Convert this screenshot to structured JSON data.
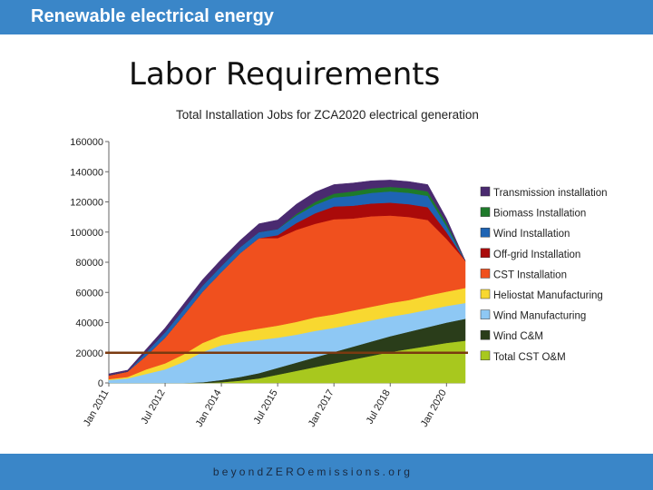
{
  "header": {
    "title": "Renewable electrical energy"
  },
  "slide": {
    "title": "Labor Requirements"
  },
  "footer": {
    "url": "beyondZEROemissions.org"
  },
  "chart_data": {
    "type": "area",
    "stacked": true,
    "title": "Total Installation Jobs for ZCA2020 electrical generation",
    "xlabel": "",
    "ylabel": "",
    "ylim": [
      0,
      160000
    ],
    "yticks": [
      0,
      20000,
      40000,
      60000,
      80000,
      100000,
      120000,
      140000,
      160000
    ],
    "x": [
      "Jan 2011",
      "Jul 2011",
      "Jan 2012",
      "Jul 2012",
      "Jan 2013",
      "Jul 2013",
      "Jan 2014",
      "Jul 2014",
      "Jan 2015",
      "Jul 2015",
      "Jan 2016",
      "Jul 2016",
      "Jan 2017",
      "Jul 2017",
      "Jan 2018",
      "Jul 2018",
      "Jan 2019",
      "Jul 2019",
      "Jan 2020",
      "Jul 2020"
    ],
    "xtick_labels": [
      "Jan 2011",
      "Jul 2012",
      "Jan 2014",
      "Jul 2015",
      "Jan 2017",
      "Jul 2018",
      "Jan 2020"
    ],
    "xtick_indices": [
      0,
      3,
      6,
      9,
      12,
      15,
      18
    ],
    "grid": false,
    "legend": "right",
    "reference_line": {
      "y": 20000,
      "color": "#7a3a10"
    },
    "series": [
      {
        "name": "Total CST O&M",
        "color": "#a8c81e",
        "values": [
          0,
          0,
          0,
          0,
          0,
          0,
          500,
          1500,
          3000,
          5500,
          8000,
          10500,
          13000,
          15500,
          18000,
          20500,
          22500,
          24500,
          26500,
          28000
        ]
      },
      {
        "name": "Wind C&M",
        "color": "#2a3d1a",
        "values": [
          0,
          0,
          0,
          0,
          0,
          500,
          1500,
          2500,
          3500,
          4500,
          5500,
          6500,
          7500,
          8500,
          9500,
          10500,
          11500,
          12500,
          13500,
          14500
        ]
      },
      {
        "name": "Wind Manufacturing",
        "color": "#8ec8f4",
        "values": [
          2000,
          3000,
          6000,
          9000,
          14000,
          20000,
          23000,
          23000,
          22000,
          20000,
          18500,
          17500,
          16000,
          15000,
          14000,
          13000,
          12000,
          11500,
          11000,
          10500
        ]
      },
      {
        "name": "Heliostat Manufacturing",
        "color": "#f8d830",
        "values": [
          500,
          1000,
          3000,
          4000,
          5000,
          6000,
          6500,
          7000,
          7500,
          8000,
          8500,
          9000,
          9000,
          9000,
          9000,
          9000,
          9000,
          9500,
          9500,
          10000
        ]
      },
      {
        "name": "CST Installation",
        "color": "#f0501e",
        "values": [
          2500,
          3500,
          9000,
          17000,
          26000,
          34000,
          42000,
          52000,
          60000,
          58000,
          61000,
          62000,
          63000,
          61000,
          60000,
          58000,
          55000,
          50000,
          35000,
          18000
        ]
      },
      {
        "name": "Off-grid Installation",
        "color": "#aa0a0a",
        "values": [
          0,
          0,
          0,
          0,
          0,
          0,
          0,
          0,
          0,
          2000,
          4500,
          7000,
          8500,
          8500,
          8500,
          8500,
          8500,
          8500,
          4500,
          0
        ]
      },
      {
        "name": "Wind Installation",
        "color": "#1e64b4",
        "values": [
          0,
          0,
          2500,
          3500,
          4000,
          4000,
          4000,
          4000,
          4000,
          4000,
          5000,
          5500,
          6000,
          6500,
          7000,
          7500,
          7500,
          7500,
          4000,
          0
        ]
      },
      {
        "name": "Biomass Installation",
        "color": "#1e7a2a",
        "values": [
          0,
          0,
          0,
          0,
          0,
          0,
          0,
          0,
          0,
          0,
          1000,
          2000,
          2500,
          3000,
          3000,
          3000,
          3000,
          3000,
          2000,
          0
        ]
      },
      {
        "name": "Transmission installation",
        "color": "#4a2a70",
        "values": [
          1000,
          1000,
          2000,
          3000,
          3500,
          4000,
          4500,
          4500,
          5500,
          6000,
          6500,
          6500,
          6000,
          5500,
          5000,
          4500,
          4500,
          4500,
          3000,
          0
        ]
      }
    ]
  }
}
